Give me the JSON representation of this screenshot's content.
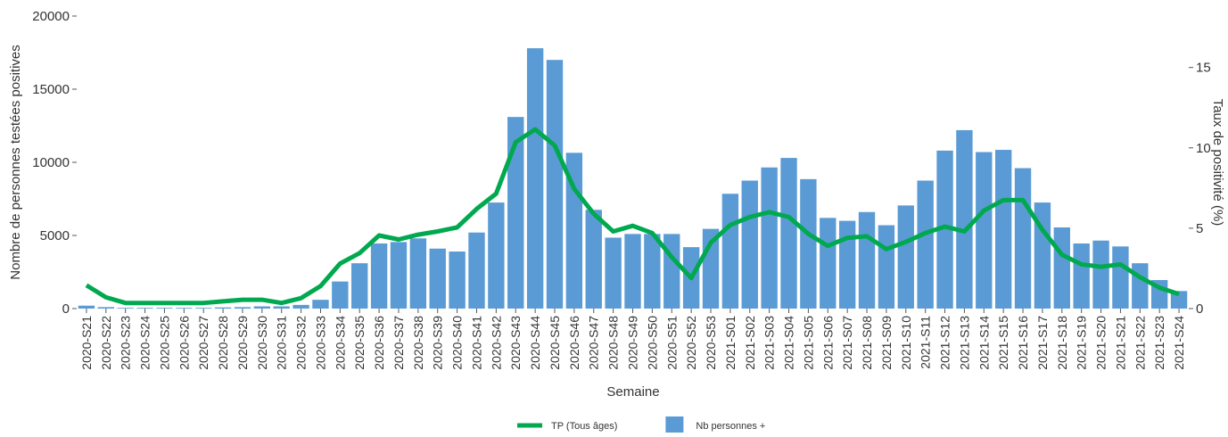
{
  "chart_data": {
    "type": "bar",
    "y_label": "Nombre de personnes testées positives",
    "y2_label": "Taux de positivité (%)",
    "x_label": "Semaine",
    "categories": [
      "2020-S21",
      "2020-S22",
      "2020-S23",
      "2020-S24",
      "2020-S25",
      "2020-S26",
      "2020-S27",
      "2020-S28",
      "2020-S29",
      "2020-S30",
      "2020-S31",
      "2020-S32",
      "2020-S33",
      "2020-S34",
      "2020-S35",
      "2020-S36",
      "2020-S37",
      "2020-S38",
      "2020-S39",
      "2020-S40",
      "2020-S41",
      "2020-S42",
      "2020-S43",
      "2020-S44",
      "2020-S45",
      "2020-S46",
      "2020-S47",
      "2020-S48",
      "2020-S49",
      "2020-S50",
      "2020-S51",
      "2020-S52",
      "2020-S53",
      "2021-S01",
      "2021-S02",
      "2021-S03",
      "2021-S04",
      "2021-S05",
      "2021-S06",
      "2021-S07",
      "2021-S08",
      "2021-S09",
      "2021-S10",
      "2021-S11",
      "2021-S12",
      "2021-S13",
      "2021-S14",
      "2021-S15",
      "2021-S16",
      "2021-S17",
      "2021-S18",
      "2021-S19",
      "2021-S20",
      "2021-S21",
      "2021-S22",
      "2021-S23",
      "2021-S24"
    ],
    "series": [
      {
        "name": "TP (Tous âges)",
        "type": "line",
        "axis": "y2",
        "color": "#00a94f",
        "values": [
          1.45,
          0.7,
          0.35,
          0.35,
          0.35,
          0.35,
          0.35,
          0.45,
          0.55,
          0.55,
          0.35,
          0.65,
          1.4,
          2.8,
          3.45,
          4.55,
          4.3,
          4.6,
          4.8,
          5.05,
          6.2,
          7.15,
          10.35,
          11.15,
          10.15,
          7.45,
          5.9,
          4.8,
          5.15,
          4.7,
          3.2,
          1.9,
          4.1,
          5.2,
          5.7,
          6.0,
          5.7,
          4.65,
          3.9,
          4.4,
          4.5,
          3.7,
          4.15,
          4.7,
          5.1,
          4.8,
          6.1,
          6.75,
          6.75,
          4.9,
          3.35,
          2.75,
          2.6,
          2.75,
          1.95,
          1.3,
          0.9
        ]
      },
      {
        "name": "Nb personnes +",
        "type": "bar",
        "color": "#5b9bd5",
        "values": [
          200,
          100,
          50,
          50,
          50,
          50,
          50,
          80,
          100,
          150,
          150,
          250,
          600,
          1850,
          3100,
          4450,
          4550,
          4800,
          4100,
          3900,
          5200,
          7250,
          13100,
          17800,
          17000,
          10650,
          6750,
          4850,
          5100,
          5100,
          5100,
          4200,
          5450,
          7850,
          8750,
          9650,
          10300,
          8850,
          6200,
          6000,
          6600,
          5700,
          7050,
          8750,
          10800,
          12200,
          10700,
          10850,
          9600,
          7250,
          5550,
          4450,
          4650,
          4250,
          3100,
          1950,
          1200
        ]
      }
    ],
    "ylim": [
      0,
      20000
    ],
    "yticks": [
      0,
      5000,
      10000,
      15000,
      20000
    ],
    "y2lim": [
      0,
      18.2
    ],
    "y2ticks": [
      0,
      5,
      10,
      15
    ]
  }
}
